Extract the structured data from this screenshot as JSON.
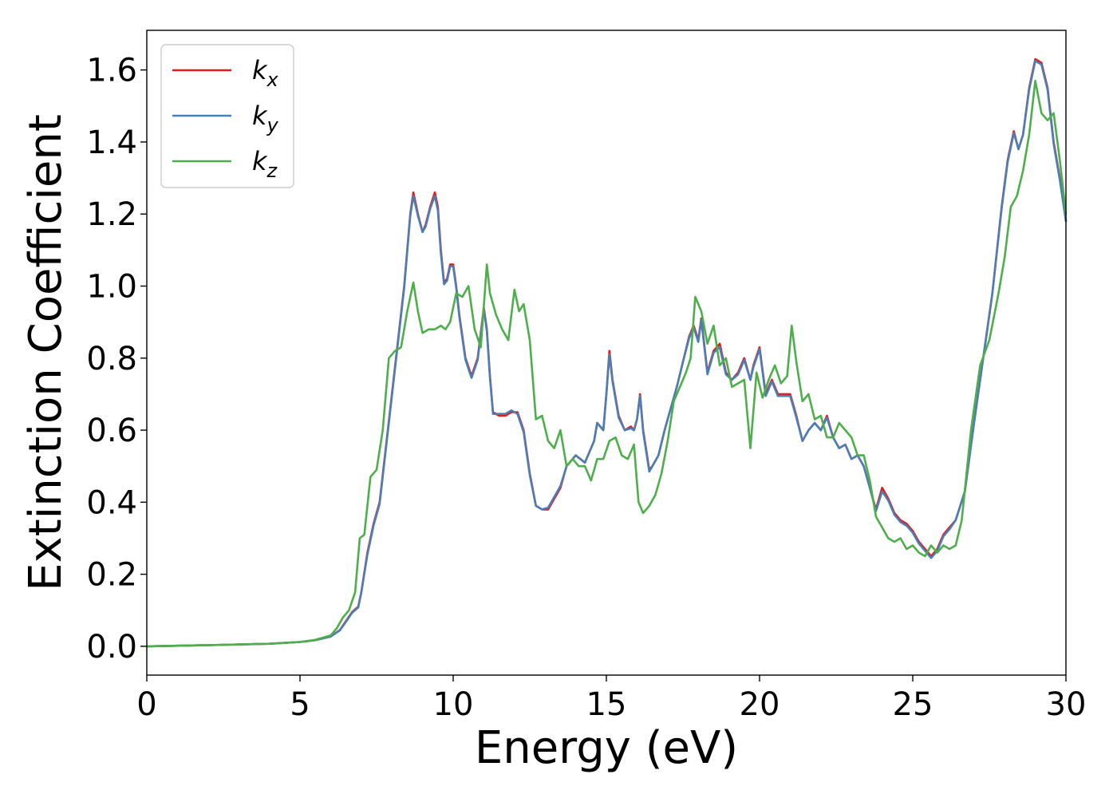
{
  "chart_data": {
    "type": "line",
    "xlabel": "Energy (eV)",
    "ylabel": "Extinction Coefficient",
    "xlim": [
      0,
      30
    ],
    "ylim": [
      -0.08,
      1.71
    ],
    "xticks": [
      0,
      5,
      10,
      15,
      20,
      25,
      30
    ],
    "xtick_labels": [
      "0",
      "5",
      "10",
      "15",
      "20",
      "25",
      "30"
    ],
    "yticks": [
      0.0,
      0.2,
      0.4,
      0.6,
      0.8,
      1.0,
      1.2,
      1.4,
      1.6
    ],
    "ytick_labels": [
      "0.0",
      "0.2",
      "0.4",
      "0.6",
      "0.8",
      "1.0",
      "1.2",
      "1.4",
      "1.6"
    ],
    "grid": false,
    "legend_position": "top-left",
    "series": [
      {
        "name": "k",
        "subscript": "x",
        "color": "#e41a1c",
        "x": [
          0,
          2,
          4,
          5,
          5.5,
          6,
          6.3,
          6.5,
          6.7,
          6.9,
          7.0,
          7.2,
          7.4,
          7.6,
          7.8,
          8.0,
          8.2,
          8.4,
          8.6,
          8.7,
          8.85,
          9.0,
          9.1,
          9.25,
          9.4,
          9.5,
          9.6,
          9.7,
          9.8,
          9.9,
          10.0,
          10.1,
          10.2,
          10.4,
          10.6,
          10.8,
          11.0,
          11.1,
          11.2,
          11.3,
          11.5,
          11.7,
          11.9,
          12.1,
          12.3,
          12.5,
          12.7,
          12.9,
          13.1,
          13.3,
          13.5,
          13.7,
          14.0,
          14.3,
          14.5,
          14.6,
          14.7,
          14.9,
          15.0,
          15.1,
          15.2,
          15.4,
          15.6,
          15.8,
          15.9,
          16.0,
          16.1,
          16.2,
          16.4,
          16.5,
          16.7,
          16.9,
          17.1,
          17.3,
          17.5,
          17.7,
          17.85,
          18.0,
          18.1,
          18.3,
          18.5,
          18.7,
          18.9,
          19.1,
          19.3,
          19.5,
          19.7,
          19.8,
          20.0,
          20.2,
          20.4,
          20.6,
          20.8,
          21.0,
          21.2,
          21.4,
          21.6,
          21.8,
          22.0,
          22.2,
          22.4,
          22.6,
          22.8,
          23.0,
          23.2,
          23.4,
          23.6,
          23.8,
          24.0,
          24.2,
          24.4,
          24.6,
          24.8,
          25.0,
          25.2,
          25.4,
          25.6,
          25.8,
          26.0,
          26.2,
          26.4,
          26.7,
          27.0,
          27.3,
          27.6,
          27.9,
          28.1,
          28.3,
          28.45,
          28.6,
          28.8,
          29.0,
          29.2,
          29.4,
          29.6,
          29.8,
          30.0
        ],
        "y": [
          0.0,
          0.003,
          0.007,
          0.012,
          0.017,
          0.027,
          0.045,
          0.07,
          0.095,
          0.11,
          0.15,
          0.26,
          0.34,
          0.4,
          0.55,
          0.7,
          0.85,
          1.0,
          1.2,
          1.26,
          1.2,
          1.15,
          1.17,
          1.22,
          1.26,
          1.22,
          1.1,
          1.01,
          1.02,
          1.06,
          1.06,
          1.0,
          0.92,
          0.8,
          0.75,
          0.8,
          0.94,
          0.88,
          0.75,
          0.65,
          0.64,
          0.64,
          0.65,
          0.65,
          0.6,
          0.48,
          0.39,
          0.38,
          0.38,
          0.41,
          0.44,
          0.5,
          0.53,
          0.51,
          0.55,
          0.57,
          0.62,
          0.6,
          0.7,
          0.82,
          0.74,
          0.64,
          0.6,
          0.61,
          0.6,
          0.63,
          0.7,
          0.6,
          0.49,
          0.5,
          0.53,
          0.6,
          0.66,
          0.72,
          0.79,
          0.86,
          0.89,
          0.85,
          0.91,
          0.76,
          0.82,
          0.84,
          0.76,
          0.74,
          0.76,
          0.8,
          0.74,
          0.78,
          0.83,
          0.7,
          0.74,
          0.7,
          0.7,
          0.7,
          0.64,
          0.57,
          0.6,
          0.62,
          0.6,
          0.64,
          0.58,
          0.55,
          0.56,
          0.52,
          0.53,
          0.5,
          0.44,
          0.38,
          0.44,
          0.41,
          0.37,
          0.35,
          0.34,
          0.32,
          0.29,
          0.27,
          0.25,
          0.27,
          0.31,
          0.33,
          0.35,
          0.43,
          0.62,
          0.8,
          0.98,
          1.22,
          1.35,
          1.43,
          1.38,
          1.42,
          1.55,
          1.63,
          1.62,
          1.55,
          1.4,
          1.3,
          1.18
        ]
      },
      {
        "name": "k",
        "subscript": "y",
        "color": "#4a7fb5",
        "x": [
          0,
          2,
          4,
          5,
          5.5,
          6,
          6.3,
          6.5,
          6.7,
          6.9,
          7.0,
          7.2,
          7.4,
          7.6,
          7.8,
          8.0,
          8.2,
          8.4,
          8.6,
          8.7,
          8.85,
          9.0,
          9.1,
          9.25,
          9.4,
          9.5,
          9.6,
          9.7,
          9.8,
          9.9,
          10.0,
          10.1,
          10.2,
          10.4,
          10.6,
          10.8,
          11.0,
          11.1,
          11.2,
          11.3,
          11.5,
          11.7,
          11.9,
          12.1,
          12.3,
          12.5,
          12.7,
          12.9,
          13.1,
          13.3,
          13.5,
          13.7,
          14.0,
          14.3,
          14.5,
          14.6,
          14.7,
          14.9,
          15.0,
          15.1,
          15.2,
          15.4,
          15.6,
          15.8,
          15.9,
          16.0,
          16.1,
          16.2,
          16.4,
          16.5,
          16.7,
          16.9,
          17.1,
          17.3,
          17.5,
          17.7,
          17.85,
          18.0,
          18.1,
          18.3,
          18.5,
          18.7,
          18.9,
          19.1,
          19.3,
          19.5,
          19.7,
          19.8,
          20.0,
          20.2,
          20.4,
          20.6,
          20.8,
          21.0,
          21.2,
          21.4,
          21.6,
          21.8,
          22.0,
          22.2,
          22.4,
          22.6,
          22.8,
          23.0,
          23.2,
          23.4,
          23.6,
          23.8,
          24.0,
          24.2,
          24.4,
          24.6,
          24.8,
          25.0,
          25.2,
          25.4,
          25.6,
          25.8,
          26.0,
          26.2,
          26.4,
          26.7,
          27.0,
          27.3,
          27.6,
          27.9,
          28.1,
          28.3,
          28.45,
          28.6,
          28.8,
          29.0,
          29.2,
          29.4,
          29.6,
          29.8,
          30.0
        ],
        "y": [
          0.0,
          0.003,
          0.007,
          0.012,
          0.017,
          0.027,
          0.044,
          0.068,
          0.093,
          0.108,
          0.148,
          0.255,
          0.335,
          0.395,
          0.545,
          0.695,
          0.845,
          0.995,
          1.195,
          1.25,
          1.195,
          1.15,
          1.165,
          1.215,
          1.25,
          1.21,
          1.09,
          1.005,
          1.015,
          1.055,
          1.055,
          0.995,
          0.915,
          0.795,
          0.745,
          0.795,
          0.935,
          0.875,
          0.745,
          0.645,
          0.645,
          0.645,
          0.655,
          0.645,
          0.595,
          0.475,
          0.39,
          0.38,
          0.385,
          0.415,
          0.445,
          0.5,
          0.53,
          0.51,
          0.55,
          0.57,
          0.62,
          0.6,
          0.7,
          0.81,
          0.735,
          0.635,
          0.6,
          0.605,
          0.6,
          0.63,
          0.695,
          0.595,
          0.485,
          0.5,
          0.53,
          0.6,
          0.66,
          0.72,
          0.79,
          0.855,
          0.885,
          0.845,
          0.905,
          0.755,
          0.815,
          0.83,
          0.755,
          0.74,
          0.755,
          0.795,
          0.74,
          0.775,
          0.825,
          0.695,
          0.735,
          0.695,
          0.695,
          0.695,
          0.635,
          0.57,
          0.6,
          0.62,
          0.6,
          0.635,
          0.58,
          0.55,
          0.56,
          0.52,
          0.53,
          0.5,
          0.44,
          0.375,
          0.43,
          0.405,
          0.365,
          0.345,
          0.335,
          0.315,
          0.285,
          0.265,
          0.245,
          0.265,
          0.305,
          0.325,
          0.35,
          0.43,
          0.62,
          0.8,
          0.98,
          1.215,
          1.345,
          1.425,
          1.38,
          1.42,
          1.545,
          1.625,
          1.615,
          1.545,
          1.395,
          1.295,
          1.18
        ]
      },
      {
        "name": "k",
        "subscript": "z",
        "color": "#4daf4a",
        "x": [
          0,
          2,
          4,
          5,
          5.5,
          6,
          6.2,
          6.4,
          6.6,
          6.8,
          6.95,
          7.1,
          7.3,
          7.5,
          7.7,
          7.9,
          8.1,
          8.3,
          8.5,
          8.7,
          8.85,
          9.0,
          9.2,
          9.4,
          9.6,
          9.75,
          9.9,
          10.1,
          10.3,
          10.5,
          10.7,
          10.9,
          11.1,
          11.2,
          11.4,
          11.6,
          11.8,
          12.0,
          12.15,
          12.3,
          12.5,
          12.7,
          12.9,
          13.1,
          13.3,
          13.5,
          13.7,
          13.9,
          14.1,
          14.3,
          14.5,
          14.7,
          14.9,
          15.1,
          15.3,
          15.5,
          15.7,
          15.9,
          16.05,
          16.2,
          16.4,
          16.6,
          16.8,
          17.0,
          17.2,
          17.4,
          17.6,
          17.75,
          17.9,
          18.1,
          18.3,
          18.5,
          18.7,
          18.9,
          19.1,
          19.3,
          19.5,
          19.7,
          19.9,
          20.1,
          20.3,
          20.5,
          20.7,
          20.9,
          21.05,
          21.2,
          21.4,
          21.6,
          21.8,
          22.0,
          22.2,
          22.4,
          22.6,
          22.8,
          23.0,
          23.2,
          23.4,
          23.6,
          23.8,
          24.0,
          24.2,
          24.4,
          24.6,
          24.8,
          25.0,
          25.2,
          25.4,
          25.6,
          25.8,
          26.0,
          26.2,
          26.4,
          26.6,
          26.9,
          27.2,
          27.5,
          27.8,
          28.0,
          28.2,
          28.4,
          28.6,
          28.8,
          29.0,
          29.2,
          29.4,
          29.6,
          29.8,
          30.0
        ],
        "y": [
          0.0,
          0.003,
          0.007,
          0.012,
          0.018,
          0.03,
          0.05,
          0.08,
          0.1,
          0.15,
          0.3,
          0.31,
          0.47,
          0.49,
          0.6,
          0.8,
          0.82,
          0.83,
          0.93,
          1.01,
          0.93,
          0.87,
          0.88,
          0.88,
          0.89,
          0.88,
          0.9,
          0.98,
          0.97,
          1.0,
          0.88,
          0.83,
          1.06,
          0.98,
          0.92,
          0.88,
          0.85,
          0.99,
          0.93,
          0.95,
          0.85,
          0.63,
          0.64,
          0.57,
          0.55,
          0.6,
          0.5,
          0.52,
          0.5,
          0.5,
          0.46,
          0.52,
          0.52,
          0.57,
          0.58,
          0.53,
          0.52,
          0.56,
          0.4,
          0.37,
          0.39,
          0.42,
          0.48,
          0.57,
          0.68,
          0.72,
          0.76,
          0.8,
          0.97,
          0.93,
          0.84,
          0.89,
          0.78,
          0.8,
          0.72,
          0.73,
          0.74,
          0.55,
          0.76,
          0.69,
          0.74,
          0.78,
          0.73,
          0.75,
          0.89,
          0.79,
          0.68,
          0.7,
          0.63,
          0.64,
          0.58,
          0.58,
          0.62,
          0.6,
          0.58,
          0.53,
          0.53,
          0.46,
          0.36,
          0.33,
          0.3,
          0.29,
          0.3,
          0.27,
          0.28,
          0.26,
          0.25,
          0.28,
          0.26,
          0.28,
          0.27,
          0.28,
          0.35,
          0.6,
          0.78,
          0.85,
          0.98,
          1.08,
          1.22,
          1.25,
          1.32,
          1.42,
          1.57,
          1.48,
          1.46,
          1.48,
          1.35,
          1.2
        ]
      }
    ]
  }
}
